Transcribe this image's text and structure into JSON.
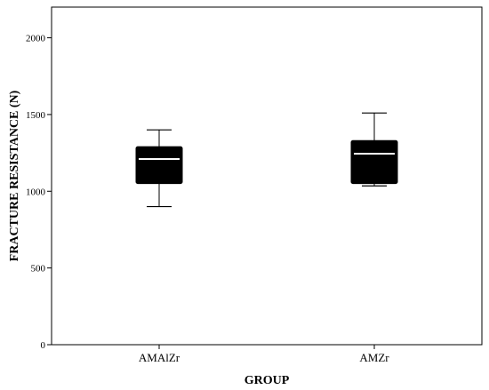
{
  "chart_data": {
    "type": "boxplot",
    "xlabel": "GROUP",
    "ylabel": "FRACTURE RESISTANCE (N)",
    "ylim": [
      0,
      2200
    ],
    "yticks": [
      0,
      500,
      1000,
      1500,
      2000
    ],
    "grid": false,
    "categories": [
      "AMAlZr",
      "AMZr"
    ],
    "boxes": [
      {
        "category": "AMAlZr",
        "min": 900,
        "q1": 1050,
        "median": 1210,
        "q3": 1290,
        "max": 1400
      },
      {
        "category": "AMZr",
        "min": 1035,
        "q1": 1050,
        "median": 1245,
        "q3": 1330,
        "max": 1510
      }
    ],
    "colors": {
      "box_fill": "#000000",
      "median": "#ffffff",
      "axis": "#000000"
    }
  }
}
